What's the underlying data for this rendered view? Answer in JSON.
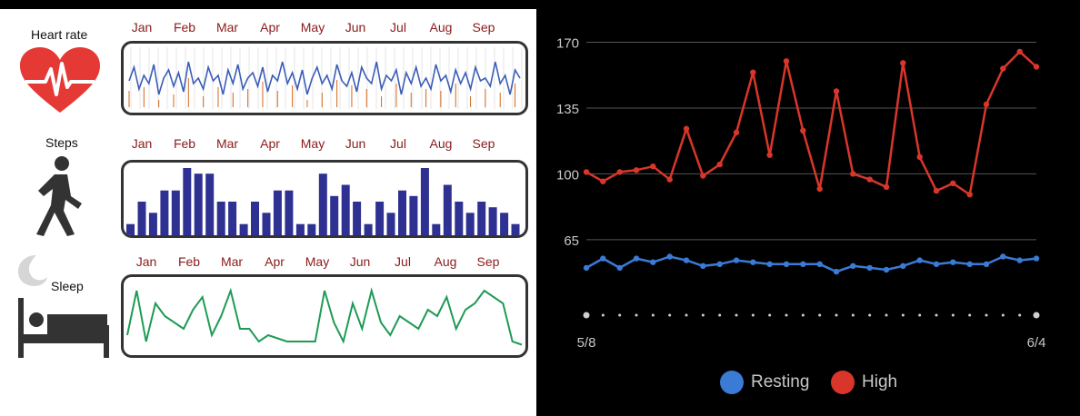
{
  "left_panel": {
    "heart_rate": {
      "label": "Heart rate",
      "icon": "heart-ecg-icon"
    },
    "steps": {
      "label": "Steps",
      "icon": "walking-person-icon"
    },
    "sleep": {
      "label": "Sleep",
      "icon": "bed-moon-icon"
    }
  },
  "months": [
    "Jan",
    "Feb",
    "Mar",
    "Apr",
    "May",
    "Jun",
    "Jul",
    "Aug",
    "Sep"
  ],
  "colors": {
    "month_text": "#8b1a1a",
    "heart_line": "#3a5db7",
    "heart_accent": "#d2691e",
    "steps_bar": "#2e3192",
    "sleep_line": "#1e9b55",
    "heart_icon": "#e53935",
    "resting": "#3a7bd5",
    "high": "#d9362b"
  },
  "legend": {
    "resting": "Resting",
    "high": "High"
  },
  "chart_data": [
    {
      "type": "line",
      "title": "",
      "series": [
        {
          "name": "Heart rate",
          "values": [
            0.55,
            0.3,
            0.7,
            0.45,
            0.6,
            0.25,
            0.8,
            0.5,
            0.35,
            0.65,
            0.4,
            0.75,
            0.2,
            0.6,
            0.5,
            0.7,
            0.3,
            0.55,
            0.45,
            0.8,
            0.35,
            0.6,
            0.25,
            0.7,
            0.5,
            0.4,
            0.65,
            0.3,
            0.75,
            0.45,
            0.55,
            0.2,
            0.6,
            0.4,
            0.7,
            0.35,
            0.8,
            0.5,
            0.3,
            0.6,
            0.45,
            0.7,
            0.25,
            0.55,
            0.65,
            0.4,
            0.75,
            0.3,
            0.5,
            0.6,
            0.2,
            0.7,
            0.45,
            0.55,
            0.35,
            0.8,
            0.4,
            0.6,
            0.3,
            0.65,
            0.5,
            0.7,
            0.25,
            0.55,
            0.45,
            0.75,
            0.35,
            0.6,
            0.4,
            0.7,
            0.3,
            0.55,
            0.5,
            0.65,
            0.2,
            0.6,
            0.45,
            0.8,
            0.35,
            0.5
          ]
        }
      ]
    },
    {
      "type": "bar",
      "title": "",
      "values": [
        2,
        6,
        4,
        8,
        8,
        12,
        11,
        11,
        6,
        6,
        2,
        6,
        4,
        8,
        8,
        2,
        2,
        11,
        7,
        9,
        6,
        2,
        6,
        4,
        8,
        7,
        12,
        2,
        9,
        6,
        4,
        6,
        5,
        4,
        2
      ]
    },
    {
      "type": "line",
      "title": "",
      "values": [
        0.2,
        0.9,
        0.1,
        0.7,
        0.5,
        0.4,
        0.3,
        0.6,
        0.8,
        0.2,
        0.5,
        0.9,
        0.3,
        0.3,
        0.1,
        0.2,
        0.15,
        0.1,
        0.1,
        0.1,
        0.1,
        0.9,
        0.4,
        0.1,
        0.7,
        0.3,
        0.9,
        0.4,
        0.2,
        0.5,
        0.4,
        0.3,
        0.6,
        0.5,
        0.8,
        0.3,
        0.6,
        0.7,
        0.9,
        0.8,
        0.7,
        0.1,
        0.05
      ]
    },
    {
      "type": "line",
      "x_start_label": "5/8",
      "x_end_label": "6/4",
      "y_ticks": [
        65,
        100,
        135,
        170
      ],
      "ylim": [
        20,
        178
      ],
      "series": [
        {
          "name": "High",
          "values": [
            101,
            96,
            101,
            102,
            104,
            97,
            124,
            99,
            105,
            122,
            154,
            110,
            160,
            123,
            92,
            144,
            100,
            97,
            93,
            159,
            109,
            91,
            95,
            89,
            137,
            156,
            165,
            157
          ]
        },
        {
          "name": "Resting",
          "values": [
            50,
            55,
            50,
            55,
            53,
            56,
            54,
            51,
            52,
            54,
            53,
            52,
            52,
            52,
            52,
            48,
            51,
            50,
            49,
            51,
            54,
            52,
            53,
            52,
            52,
            56,
            54,
            55
          ]
        }
      ],
      "grid": true,
      "legend_position": "bottom-center"
    }
  ]
}
